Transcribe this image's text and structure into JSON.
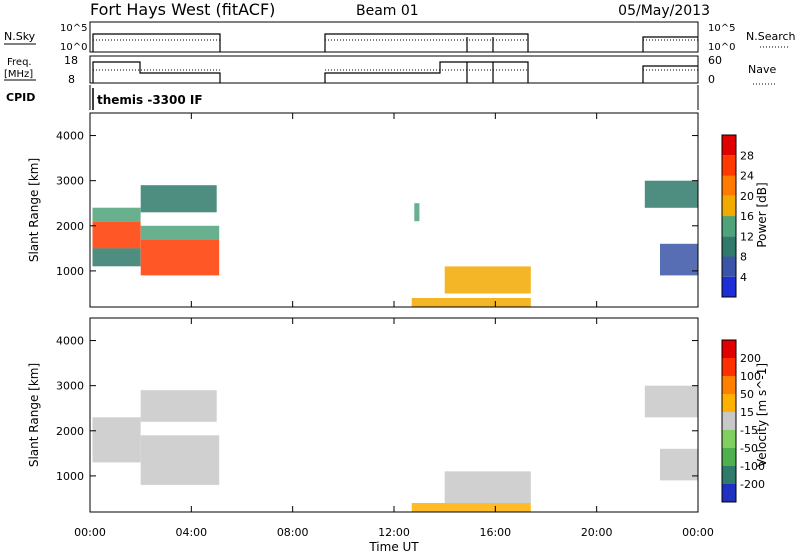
{
  "header": {
    "station": "Fort Hays West (fitACF)",
    "beam": "Beam 01",
    "date": "05/May/2013"
  },
  "panels": {
    "nsky_label": "N.Sky",
    "nsky_ticks": [
      "10^5",
      "10^0"
    ],
    "nsearch_label": "N.Search",
    "nsearch_ticks": [
      "10^5",
      "10^0"
    ],
    "freq_label_1": "Freq.",
    "freq_label_2": "[MHz]",
    "freq_ticks": [
      "18",
      "8"
    ],
    "nave_label": "Nave",
    "nave_ticks": [
      "60",
      "0"
    ],
    "cpid_label": "CPID",
    "cpid_text": "themis -3300 IF"
  },
  "colors": {
    "power_scale": [
      "#1f2fd8",
      "#3a55a8",
      "#2f7a6a",
      "#4fa37a",
      "#f2a900",
      "#ff7a00",
      "#ff3a00",
      "#e00000"
    ],
    "velocity_scale": [
      "#2030c0",
      "#2f7a6a",
      "#50b050",
      "#7fd060",
      "#c8c8c8",
      "#ffb000",
      "#ff8000",
      "#ff3000",
      "#e00000"
    ]
  },
  "chart_data": [
    {
      "type": "heatmap",
      "name": "Power",
      "ylabel": "Slant Range [km]",
      "ylim": [
        200,
        4500
      ],
      "yticks": [
        "4000",
        "3000",
        "2000",
        "1000"
      ],
      "xlim_hours": [
        0,
        24
      ],
      "colorbar_label": "Power [dB]",
      "colorbar_ticks": [
        "28",
        "24",
        "20",
        "16",
        "12",
        "8",
        "4"
      ],
      "regions": [
        {
          "t0": 0.1,
          "t1": 2.0,
          "r0": 1500,
          "r1": 2100,
          "level": 6
        },
        {
          "t0": 0.1,
          "t1": 2.0,
          "r0": 2100,
          "r1": 2400,
          "level": 3
        },
        {
          "t0": 0.1,
          "t1": 2.0,
          "r0": 1100,
          "r1": 1500,
          "level": 2
        },
        {
          "t0": 2.0,
          "t1": 5.1,
          "r0": 900,
          "r1": 1700,
          "level": 6
        },
        {
          "t0": 2.0,
          "t1": 5.1,
          "r0": 1700,
          "r1": 2000,
          "level": 3
        },
        {
          "t0": 2.0,
          "t1": 5.0,
          "r0": 2300,
          "r1": 2900,
          "level": 2
        },
        {
          "t0": 12.8,
          "t1": 13.0,
          "r0": 2100,
          "r1": 2500,
          "level": 3
        },
        {
          "t0": 14.0,
          "t1": 17.4,
          "r0": 500,
          "r1": 1100,
          "level": 4
        },
        {
          "t0": 12.7,
          "t1": 17.4,
          "r0": 200,
          "r1": 400,
          "level": 4
        },
        {
          "t0": 21.9,
          "t1": 24.0,
          "r0": 2400,
          "r1": 3000,
          "level": 2
        },
        {
          "t0": 22.5,
          "t1": 24.0,
          "r0": 900,
          "r1": 1600,
          "level": 1
        }
      ]
    },
    {
      "type": "heatmap",
      "name": "Velocity",
      "ylabel": "Slant Range [km]",
      "ylim": [
        200,
        4500
      ],
      "yticks": [
        "4000",
        "3000",
        "2000",
        "1000"
      ],
      "xlim_hours": [
        0,
        24
      ],
      "colorbar_label": "Velocity [m s^-1]",
      "colorbar_ticks": [
        "200",
        "100",
        "50",
        "15",
        "-15",
        "-50",
        "-100",
        "-200"
      ],
      "xlabel": "Time UT",
      "xticks": [
        "00:00",
        "04:00",
        "08:00",
        "12:00",
        "16:00",
        "20:00",
        "00:00"
      ],
      "regions": [
        {
          "t0": 0.1,
          "t1": 2.0,
          "r0": 1300,
          "r1": 2300,
          "level": 4
        },
        {
          "t0": 2.0,
          "t1": 5.1,
          "r0": 800,
          "r1": 1900,
          "level": 4
        },
        {
          "t0": 2.0,
          "t1": 5.0,
          "r0": 2200,
          "r1": 2900,
          "level": 4
        },
        {
          "t0": 14.0,
          "t1": 17.4,
          "r0": 400,
          "r1": 1100,
          "level": 4
        },
        {
          "t0": 12.7,
          "t1": 17.4,
          "r0": 200,
          "r1": 400,
          "level": 5
        },
        {
          "t0": 21.9,
          "t1": 24.0,
          "r0": 2300,
          "r1": 3000,
          "level": 4
        },
        {
          "t0": 22.5,
          "t1": 24.0,
          "r0": 900,
          "r1": 1600,
          "level": 4
        }
      ]
    }
  ]
}
